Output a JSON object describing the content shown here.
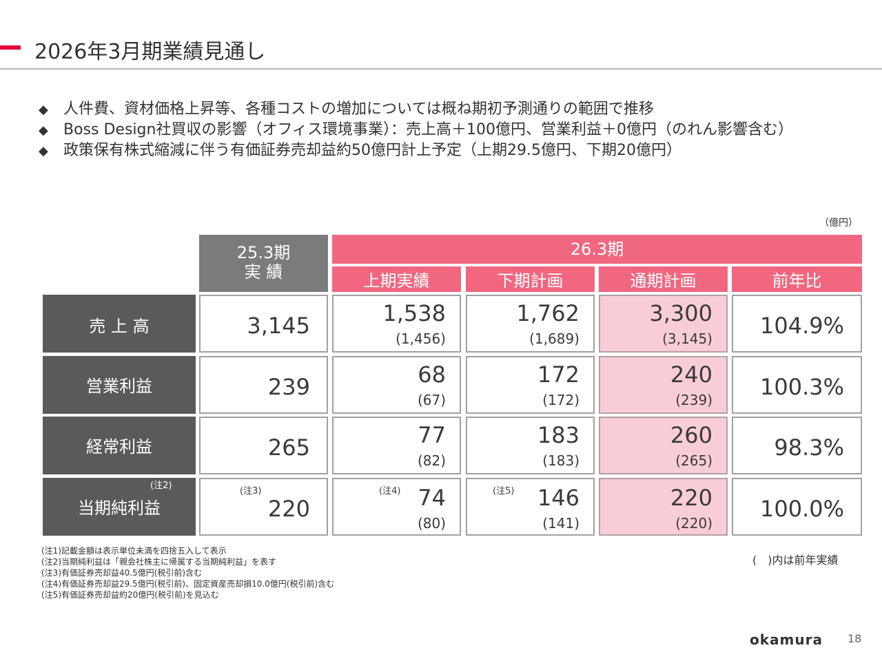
{
  "slide": {
    "title": "2026年3月期業績見通し",
    "page_number": "18",
    "logo_text": "okamura"
  },
  "bullets": [
    {
      "mark": "◆",
      "text": "人件費、資材価格上昇等、各種コストの増加については概ね期初予測通りの範囲で推移"
    },
    {
      "mark": "◆",
      "text": "Boss Design社買収の影響（オフィス環境事業）：売上高＋100億円、営業利益＋0億円（のれん影響含む）"
    },
    {
      "mark": "◆",
      "text": "政策保有株式縮減に伴う有価証券売却益約50億円計上予定（上期29.5億円、下期20億円）"
    }
  ],
  "table": {
    "unit": "（億円）",
    "col_fy25": {
      "line1": "25.3期",
      "line2": "実 績"
    },
    "col_fy26": "26.3期",
    "sub_headers": [
      "上期実績",
      "下期計画",
      "通期計画",
      "前年比"
    ],
    "rows": [
      {
        "label": "売 上 高",
        "label_note": "",
        "fy25": "3,145",
        "fy25_note": "",
        "h1": "1,538",
        "h1_prev": "(1,456)",
        "h1_note": "",
        "h2": "1,762",
        "h2_prev": "(1,689)",
        "h2_note": "",
        "full": "3,300",
        "full_prev": "(3,145)",
        "yoy": "104.9%"
      },
      {
        "label": "営業利益",
        "label_note": "",
        "fy25": "239",
        "fy25_note": "",
        "h1": "68",
        "h1_prev": "(67)",
        "h1_note": "",
        "h2": "172",
        "h2_prev": "(172)",
        "h2_note": "",
        "full": "240",
        "full_prev": "(239)",
        "yoy": "100.3%"
      },
      {
        "label": "経常利益",
        "label_note": "",
        "fy25": "265",
        "fy25_note": "",
        "h1": "77",
        "h1_prev": "(82)",
        "h1_note": "",
        "h2": "183",
        "h2_prev": "(183)",
        "h2_note": "",
        "full": "260",
        "full_prev": "(265)",
        "yoy": "98.3%"
      },
      {
        "label": "当期純利益",
        "label_note": "(注2)",
        "fy25": "220",
        "fy25_note": "(注3)",
        "h1": "74",
        "h1_prev": "(80)",
        "h1_note": "(注4)",
        "h2": "146",
        "h2_prev": "(141)",
        "h2_note": "(注5)",
        "full": "220",
        "full_prev": "(220)",
        "yoy": "100.0%"
      }
    ]
  },
  "footnotes": [
    "(注1)記載金額は表示単位未満を四捨五入して表示",
    "(注2)当期純利益は「親会社株主に帰属する当期純利益」を表す",
    "(注3)有価証券売却益40.5億円(税引前)含む",
    "(注4)有価証券売却益29.5億円(税引前)、固定資産売却損10.0億円(税引前)含む",
    "(注5)有価証券売却益約20億円(税引前)を見込む"
  ],
  "legend": "(　)内は前年実績",
  "colors": {
    "accent": "#e4003a",
    "pink_header": "#f0677f",
    "pink_cell": "#f9cdd7",
    "gray_header": "#7b7b7b",
    "row_label": "#5a5a5a"
  }
}
